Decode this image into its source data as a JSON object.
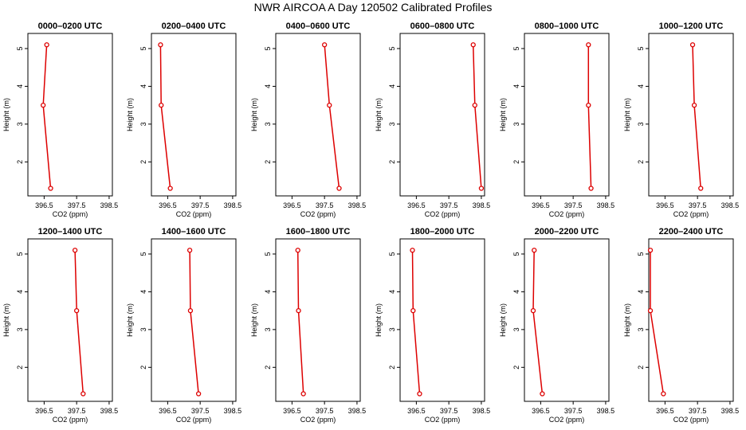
{
  "title": "NWR AIRCOA A  Day 120502  Calibrated Profiles",
  "colors": {
    "series": "#dd0000",
    "frame": "#000000",
    "background": "#ffffff"
  },
  "chart_data": [
    {
      "type": "line",
      "title": "0000–0200 UTC",
      "xlabel": "CO2 (ppm)",
      "ylabel": "Height (m)",
      "xlim": [
        396.0,
        398.6
      ],
      "ylim": [
        1.1,
        5.4
      ],
      "xticks": [
        396.5,
        397.5,
        398.5
      ],
      "xtick_labels": [
        "396.5",
        "397.5",
        "398.5"
      ],
      "yticks": [
        2,
        3,
        4,
        5
      ],
      "ytick_labels": [
        "2",
        "3",
        "4",
        "5"
      ],
      "x": [
        396.7,
        396.47,
        396.58
      ],
      "y": [
        1.3,
        3.5,
        5.1
      ]
    },
    {
      "type": "line",
      "title": "0200–0400 UTC",
      "xlabel": "CO2 (ppm)",
      "ylabel": "Height (m)",
      "xlim": [
        396.0,
        398.6
      ],
      "ylim": [
        1.1,
        5.4
      ],
      "xticks": [
        396.5,
        397.5,
        398.5
      ],
      "xtick_labels": [
        "396.5",
        "397.5",
        "398.5"
      ],
      "yticks": [
        2,
        3,
        4,
        5
      ],
      "ytick_labels": [
        "2",
        "3",
        "4",
        "5"
      ],
      "x": [
        396.58,
        396.3,
        396.28
      ],
      "y": [
        1.3,
        3.5,
        5.1
      ]
    },
    {
      "type": "line",
      "title": "0400–0600 UTC",
      "xlabel": "CO2 (ppm)",
      "ylabel": "Height (m)",
      "xlim": [
        396.0,
        398.6
      ],
      "ylim": [
        1.1,
        5.4
      ],
      "xticks": [
        396.5,
        397.5,
        398.5
      ],
      "xtick_labels": [
        "396.5",
        "397.5",
        "398.5"
      ],
      "yticks": [
        2,
        3,
        4,
        5
      ],
      "ytick_labels": [
        "2",
        "3",
        "4",
        "5"
      ],
      "x": [
        397.95,
        397.65,
        397.5
      ],
      "y": [
        1.3,
        3.5,
        5.1
      ]
    },
    {
      "type": "line",
      "title": "0600–0800 UTC",
      "xlabel": "CO2 (ppm)",
      "ylabel": "Height (m)",
      "xlim": [
        396.0,
        398.6
      ],
      "ylim": [
        1.1,
        5.4
      ],
      "xticks": [
        396.5,
        397.5,
        398.5
      ],
      "xtick_labels": [
        "396.5",
        "397.5",
        "398.5"
      ],
      "yticks": [
        2,
        3,
        4,
        5
      ],
      "ytick_labels": [
        "2",
        "3",
        "4",
        "5"
      ],
      "x": [
        398.5,
        398.3,
        398.25
      ],
      "y": [
        1.3,
        3.5,
        5.1
      ]
    },
    {
      "type": "line",
      "title": "0800–1000 UTC",
      "xlabel": "CO2 (ppm)",
      "ylabel": "Height (m)",
      "xlim": [
        396.0,
        398.6
      ],
      "ylim": [
        1.1,
        5.4
      ],
      "xticks": [
        396.5,
        397.5,
        398.5
      ],
      "xtick_labels": [
        "396.5",
        "397.5",
        "398.5"
      ],
      "yticks": [
        2,
        3,
        4,
        5
      ],
      "ytick_labels": [
        "2",
        "3",
        "4",
        "5"
      ],
      "x": [
        398.05,
        397.97,
        397.97
      ],
      "y": [
        1.3,
        3.5,
        5.1
      ]
    },
    {
      "type": "line",
      "title": "1000–1200 UTC",
      "xlabel": "CO2 (ppm)",
      "ylabel": "Height (m)",
      "xlim": [
        396.0,
        398.6
      ],
      "ylim": [
        1.1,
        5.4
      ],
      "xticks": [
        396.5,
        397.5,
        398.5
      ],
      "xtick_labels": [
        "396.5",
        "397.5",
        "398.5"
      ],
      "yticks": [
        2,
        3,
        4,
        5
      ],
      "ytick_labels": [
        "2",
        "3",
        "4",
        "5"
      ],
      "x": [
        397.6,
        397.4,
        397.35
      ],
      "y": [
        1.3,
        3.5,
        5.1
      ]
    },
    {
      "type": "line",
      "title": "1200–1400 UTC",
      "xlabel": "CO2 (ppm)",
      "ylabel": "Height (m)",
      "xlim": [
        396.0,
        398.6
      ],
      "ylim": [
        1.1,
        5.4
      ],
      "xticks": [
        396.5,
        397.5,
        398.5
      ],
      "xtick_labels": [
        "396.5",
        "397.5",
        "398.5"
      ],
      "yticks": [
        2,
        3,
        4,
        5
      ],
      "ytick_labels": [
        "2",
        "3",
        "4",
        "5"
      ],
      "x": [
        397.7,
        397.5,
        397.45
      ],
      "y": [
        1.3,
        3.5,
        5.1
      ]
    },
    {
      "type": "line",
      "title": "1400–1600 UTC",
      "xlabel": "CO2 (ppm)",
      "ylabel": "Height (m)",
      "xlim": [
        396.0,
        398.6
      ],
      "ylim": [
        1.1,
        5.4
      ],
      "xticks": [
        396.5,
        397.5,
        398.5
      ],
      "xtick_labels": [
        "396.5",
        "397.5",
        "398.5"
      ],
      "yticks": [
        2,
        3,
        4,
        5
      ],
      "ytick_labels": [
        "2",
        "3",
        "4",
        "5"
      ],
      "x": [
        397.45,
        397.2,
        397.18
      ],
      "y": [
        1.3,
        3.5,
        5.1
      ]
    },
    {
      "type": "line",
      "title": "1600–1800 UTC",
      "xlabel": "CO2 (ppm)",
      "ylabel": "Height (m)",
      "xlim": [
        396.0,
        398.6
      ],
      "ylim": [
        1.1,
        5.4
      ],
      "xticks": [
        396.5,
        397.5,
        398.5
      ],
      "xtick_labels": [
        "396.5",
        "397.5",
        "398.5"
      ],
      "yticks": [
        2,
        3,
        4,
        5
      ],
      "ytick_labels": [
        "2",
        "3",
        "4",
        "5"
      ],
      "x": [
        396.85,
        396.7,
        396.68
      ],
      "y": [
        1.3,
        3.5,
        5.1
      ]
    },
    {
      "type": "line",
      "title": "1800–2000 UTC",
      "xlabel": "CO2 (ppm)",
      "ylabel": "Height (m)",
      "xlim": [
        396.0,
        398.6
      ],
      "ylim": [
        1.1,
        5.4
      ],
      "xticks": [
        396.5,
        397.5,
        398.5
      ],
      "xtick_labels": [
        "396.5",
        "397.5",
        "398.5"
      ],
      "yticks": [
        2,
        3,
        4,
        5
      ],
      "ytick_labels": [
        "2",
        "3",
        "4",
        "5"
      ],
      "x": [
        396.6,
        396.4,
        396.38
      ],
      "y": [
        1.3,
        3.5,
        5.1
      ]
    },
    {
      "type": "line",
      "title": "2000–2200 UTC",
      "xlabel": "CO2 (ppm)",
      "ylabel": "Height (m)",
      "xlim": [
        396.0,
        398.6
      ],
      "ylim": [
        1.1,
        5.4
      ],
      "xticks": [
        396.5,
        397.5,
        398.5
      ],
      "xtick_labels": [
        "396.5",
        "397.5",
        "398.5"
      ],
      "yticks": [
        2,
        3,
        4,
        5
      ],
      "ytick_labels": [
        "2",
        "3",
        "4",
        "5"
      ],
      "x": [
        396.55,
        396.27,
        396.3
      ],
      "y": [
        1.3,
        3.5,
        5.1
      ]
    },
    {
      "type": "line",
      "title": "2200–2400 UTC",
      "xlabel": "CO2 (ppm)",
      "ylabel": "Height (m)",
      "xlim": [
        396.0,
        398.6
      ],
      "ylim": [
        1.1,
        5.4
      ],
      "xticks": [
        396.5,
        397.5,
        398.5
      ],
      "xtick_labels": [
        "396.5",
        "397.5",
        "398.5"
      ],
      "yticks": [
        2,
        3,
        4,
        5
      ],
      "ytick_labels": [
        "2",
        "3",
        "4",
        "5"
      ],
      "x": [
        396.45,
        396.05,
        396.05
      ],
      "y": [
        1.3,
        3.5,
        5.1
      ]
    }
  ]
}
